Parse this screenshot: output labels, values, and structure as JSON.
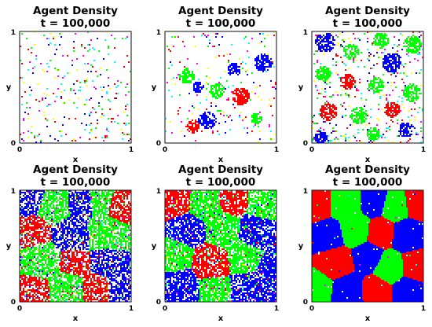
{
  "colors": {
    "palette": [
      "#ff0000",
      "#00ff00",
      "#0000ff",
      "#ffff00",
      "#ff00ff",
      "#00ffff",
      "#ffffff"
    ],
    "background": "#ffffff"
  },
  "chart_data": [
    {
      "type": "heatmap",
      "title": "Agent Density",
      "subtitle": "t = 100,000",
      "xlabel": "x",
      "ylabel": "y",
      "xlim": [
        0,
        1
      ],
      "ylim": [
        0,
        1
      ],
      "xticks": [
        "0",
        "1"
      ],
      "yticks": [
        "0",
        "1"
      ],
      "grid": false,
      "fill_fraction": 0.06,
      "clusters": []
    },
    {
      "type": "heatmap",
      "title": "Agent Density",
      "subtitle": "t = 100,000",
      "xlabel": "x",
      "ylabel": "y",
      "xlim": [
        0,
        1
      ],
      "ylim": [
        0,
        1
      ],
      "xticks": [
        "0",
        "1"
      ],
      "yticks": [
        "0",
        "1"
      ],
      "grid": false,
      "fill_fraction": 0.18,
      "clusters": [
        {
          "species": "green",
          "x": 0.2,
          "y": 0.6,
          "r": 0.07
        },
        {
          "species": "blue",
          "x": 0.3,
          "y": 0.5,
          "r": 0.05
        },
        {
          "species": "green",
          "x": 0.47,
          "y": 0.47,
          "r": 0.07
        },
        {
          "species": "blue",
          "x": 0.62,
          "y": 0.66,
          "r": 0.06
        },
        {
          "species": "red",
          "x": 0.68,
          "y": 0.42,
          "r": 0.08
        },
        {
          "species": "blue",
          "x": 0.88,
          "y": 0.72,
          "r": 0.08
        },
        {
          "species": "blue",
          "x": 0.38,
          "y": 0.2,
          "r": 0.08
        },
        {
          "species": "red",
          "x": 0.25,
          "y": 0.15,
          "r": 0.06
        },
        {
          "species": "green",
          "x": 0.82,
          "y": 0.22,
          "r": 0.05
        }
      ]
    },
    {
      "type": "heatmap",
      "title": "Agent Density",
      "subtitle": "t = 100,000",
      "xlabel": "x",
      "ylabel": "y",
      "xlim": [
        0,
        1
      ],
      "ylim": [
        0,
        1
      ],
      "xticks": [
        "0",
        "1"
      ],
      "yticks": [
        "0",
        "1"
      ],
      "grid": false,
      "fill_fraction": 0.32,
      "clusters": [
        {
          "species": "blue",
          "x": 0.12,
          "y": 0.9,
          "r": 0.09
        },
        {
          "species": "green",
          "x": 0.35,
          "y": 0.82,
          "r": 0.07
        },
        {
          "species": "green",
          "x": 0.62,
          "y": 0.92,
          "r": 0.07
        },
        {
          "species": "blue",
          "x": 0.72,
          "y": 0.72,
          "r": 0.09
        },
        {
          "species": "green",
          "x": 0.9,
          "y": 0.88,
          "r": 0.08
        },
        {
          "species": "green",
          "x": 0.1,
          "y": 0.62,
          "r": 0.07
        },
        {
          "species": "red",
          "x": 0.32,
          "y": 0.55,
          "r": 0.07
        },
        {
          "species": "green",
          "x": 0.58,
          "y": 0.52,
          "r": 0.07
        },
        {
          "species": "green",
          "x": 0.9,
          "y": 0.45,
          "r": 0.08
        },
        {
          "species": "red",
          "x": 0.15,
          "y": 0.28,
          "r": 0.08
        },
        {
          "species": "green",
          "x": 0.42,
          "y": 0.25,
          "r": 0.08
        },
        {
          "species": "red",
          "x": 0.72,
          "y": 0.3,
          "r": 0.07
        },
        {
          "species": "blue",
          "x": 0.85,
          "y": 0.12,
          "r": 0.07
        },
        {
          "species": "blue",
          "x": 0.08,
          "y": 0.05,
          "r": 0.06
        },
        {
          "species": "green",
          "x": 0.55,
          "y": 0.08,
          "r": 0.06
        }
      ]
    },
    {
      "type": "heatmap",
      "title": "Agent Density",
      "subtitle": "t = 100,000",
      "xlabel": "x",
      "ylabel": "y",
      "xlim": [
        0,
        1
      ],
      "ylim": [
        0,
        1
      ],
      "xticks": [
        "0",
        "1"
      ],
      "yticks": [
        "0",
        "1"
      ],
      "grid": false,
      "fill_fraction": 0.68,
      "clusters": [
        {
          "species": "blue",
          "x": 0.08,
          "y": 0.92,
          "r": 0.12
        },
        {
          "species": "green",
          "x": 0.3,
          "y": 0.85,
          "r": 0.12
        },
        {
          "species": "blue",
          "x": 0.55,
          "y": 0.88,
          "r": 0.1
        },
        {
          "species": "green",
          "x": 0.72,
          "y": 0.9,
          "r": 0.1
        },
        {
          "species": "red",
          "x": 0.9,
          "y": 0.85,
          "r": 0.1
        },
        {
          "species": "red",
          "x": 0.12,
          "y": 0.62,
          "r": 0.12
        },
        {
          "species": "blue",
          "x": 0.45,
          "y": 0.6,
          "r": 0.12
        },
        {
          "species": "green",
          "x": 0.78,
          "y": 0.62,
          "r": 0.12
        },
        {
          "species": "green",
          "x": 0.18,
          "y": 0.38,
          "r": 0.13
        },
        {
          "species": "red",
          "x": 0.48,
          "y": 0.35,
          "r": 0.1
        },
        {
          "species": "blue",
          "x": 0.78,
          "y": 0.35,
          "r": 0.1
        },
        {
          "species": "red",
          "x": 0.12,
          "y": 0.1,
          "r": 0.11
        },
        {
          "species": "green",
          "x": 0.42,
          "y": 0.12,
          "r": 0.12
        },
        {
          "species": "red",
          "x": 0.68,
          "y": 0.12,
          "r": 0.1
        },
        {
          "species": "blue",
          "x": 0.92,
          "y": 0.12,
          "r": 0.1
        }
      ]
    },
    {
      "type": "heatmap",
      "title": "Agent Density",
      "subtitle": "t = 100,000",
      "xlabel": "x",
      "ylabel": "y",
      "xlim": [
        0,
        1
      ],
      "ylim": [
        0,
        1
      ],
      "xticks": [
        "0",
        "1"
      ],
      "yticks": [
        "0",
        "1"
      ],
      "grid": false,
      "fill_fraction": 0.78,
      "clusters": [
        {
          "species": "red",
          "x": 0.1,
          "y": 0.9,
          "r": 0.12
        },
        {
          "species": "green",
          "x": 0.35,
          "y": 0.88,
          "r": 0.12
        },
        {
          "species": "red",
          "x": 0.62,
          "y": 0.9,
          "r": 0.1
        },
        {
          "species": "green",
          "x": 0.88,
          "y": 0.88,
          "r": 0.11
        },
        {
          "species": "blue",
          "x": 0.2,
          "y": 0.65,
          "r": 0.12
        },
        {
          "species": "green",
          "x": 0.52,
          "y": 0.65,
          "r": 0.12
        },
        {
          "species": "blue",
          "x": 0.82,
          "y": 0.62,
          "r": 0.12
        },
        {
          "species": "green",
          "x": 0.1,
          "y": 0.42,
          "r": 0.11
        },
        {
          "species": "red",
          "x": 0.42,
          "y": 0.35,
          "r": 0.12
        },
        {
          "species": "green",
          "x": 0.72,
          "y": 0.4,
          "r": 0.12
        },
        {
          "species": "blue",
          "x": 0.95,
          "y": 0.3,
          "r": 0.1
        },
        {
          "species": "blue",
          "x": 0.15,
          "y": 0.12,
          "r": 0.12
        },
        {
          "species": "green",
          "x": 0.45,
          "y": 0.1,
          "r": 0.11
        },
        {
          "species": "blue",
          "x": 0.75,
          "y": 0.12,
          "r": 0.12
        }
      ]
    },
    {
      "type": "heatmap",
      "title": "Agent Density",
      "subtitle": "t = 100,000",
      "xlabel": "x",
      "ylabel": "y",
      "xlim": [
        0,
        1
      ],
      "ylim": [
        0,
        1
      ],
      "xticks": [
        "0",
        "1"
      ],
      "yticks": [
        "0",
        "1"
      ],
      "grid": false,
      "fill_fraction": 0.99,
      "clusters": [
        {
          "species": "red",
          "x": 0.05,
          "y": 0.88,
          "r": 0.14
        },
        {
          "species": "green",
          "x": 0.3,
          "y": 0.88,
          "r": 0.14
        },
        {
          "species": "blue",
          "x": 0.55,
          "y": 0.9,
          "r": 0.12
        },
        {
          "species": "green",
          "x": 0.75,
          "y": 0.85,
          "r": 0.12
        },
        {
          "species": "red",
          "x": 0.95,
          "y": 0.88,
          "r": 0.12
        },
        {
          "species": "blue",
          "x": 0.15,
          "y": 0.6,
          "r": 0.13
        },
        {
          "species": "green",
          "x": 0.38,
          "y": 0.65,
          "r": 0.13
        },
        {
          "species": "red",
          "x": 0.62,
          "y": 0.62,
          "r": 0.12
        },
        {
          "species": "blue",
          "x": 0.85,
          "y": 0.6,
          "r": 0.13
        },
        {
          "species": "red",
          "x": 0.22,
          "y": 0.35,
          "r": 0.13
        },
        {
          "species": "blue",
          "x": 0.5,
          "y": 0.4,
          "r": 0.12
        },
        {
          "species": "green",
          "x": 0.7,
          "y": 0.3,
          "r": 0.13
        },
        {
          "species": "red",
          "x": 0.92,
          "y": 0.32,
          "r": 0.12
        },
        {
          "species": "green",
          "x": 0.05,
          "y": 0.12,
          "r": 0.12
        },
        {
          "species": "blue",
          "x": 0.32,
          "y": 0.1,
          "r": 0.13
        },
        {
          "species": "red",
          "x": 0.58,
          "y": 0.1,
          "r": 0.12
        },
        {
          "species": "blue",
          "x": 0.85,
          "y": 0.1,
          "r": 0.12
        }
      ]
    }
  ]
}
